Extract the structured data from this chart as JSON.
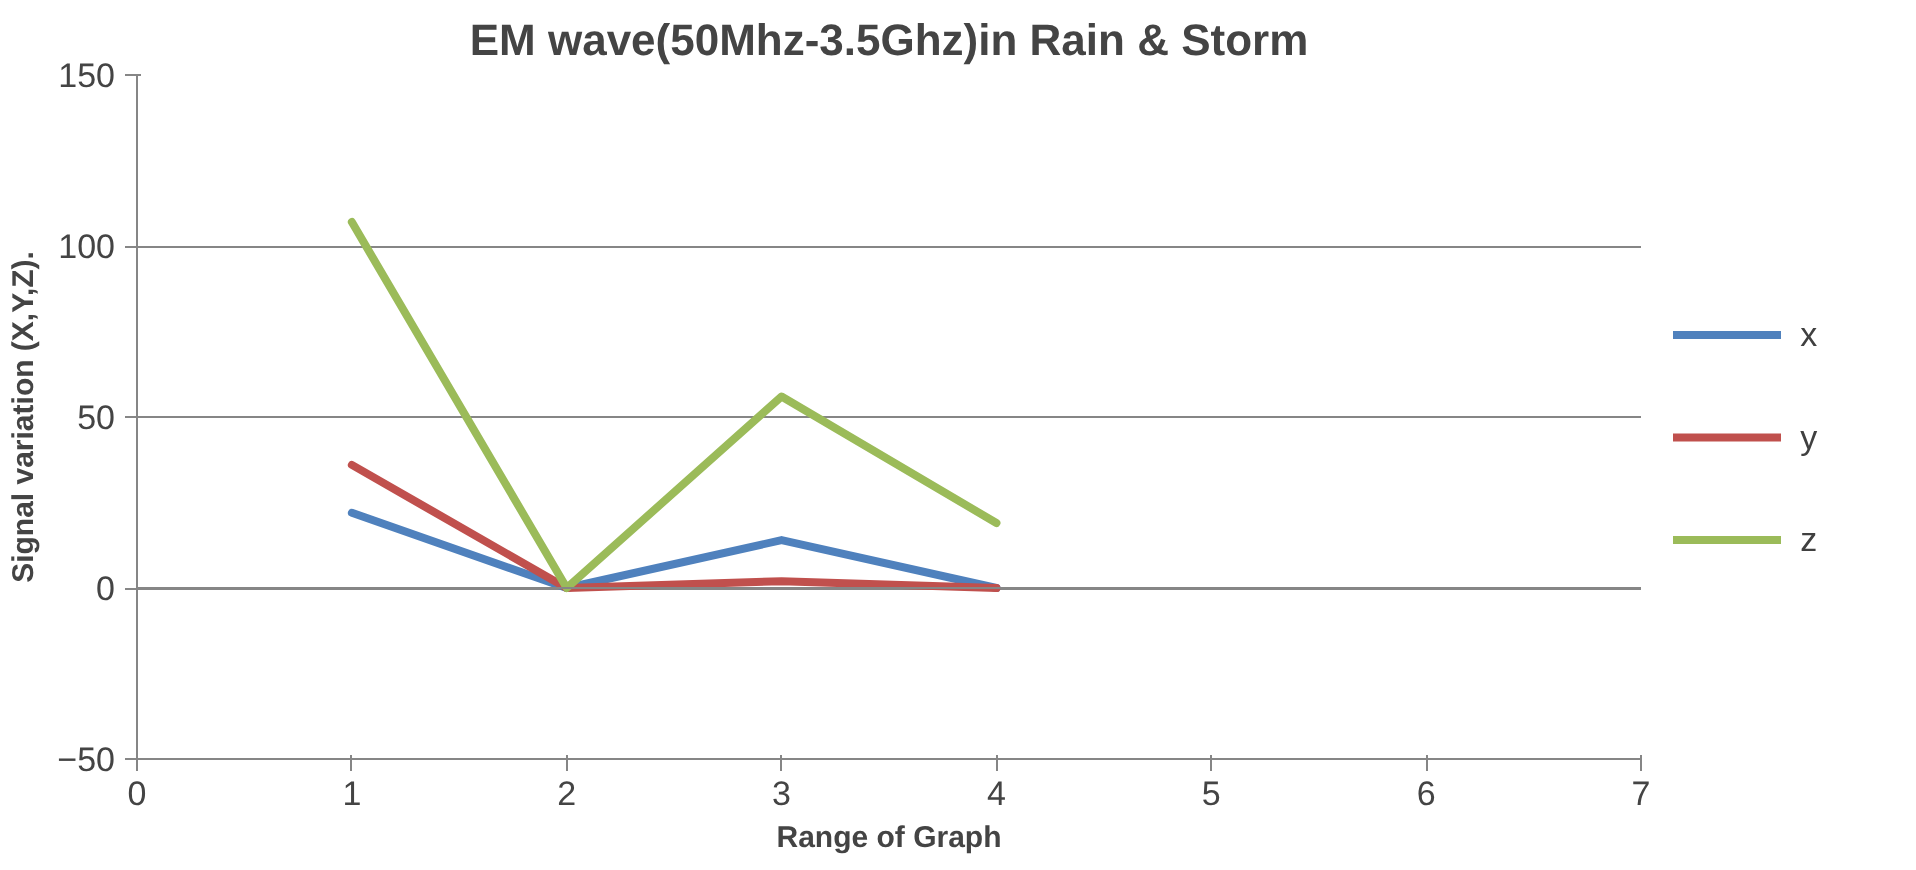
{
  "chart_data": {
    "type": "line",
    "title": "EM wave(50Mhz-3.5Ghz)in Rain & Storm",
    "xlabel": "Range of Graph",
    "ylabel": "Signal variation (X,Y,Z).",
    "x": [
      1,
      2,
      3,
      4
    ],
    "series": [
      {
        "name": "x",
        "color": "#4f81bd",
        "values": [
          22,
          0,
          14,
          0
        ]
      },
      {
        "name": "y",
        "color": "#c0504d",
        "values": [
          36,
          0,
          2,
          0
        ]
      },
      {
        "name": "z",
        "color": "#9bbb59",
        "values": [
          107,
          0,
          56,
          19
        ]
      }
    ],
    "xlim": [
      0,
      7
    ],
    "xticks": [
      0,
      1,
      2,
      3,
      4,
      5,
      6,
      7
    ],
    "ylim": [
      -50,
      150
    ],
    "yticks": [
      -50,
      0,
      50,
      100,
      150
    ],
    "grid": "y",
    "legend": "right",
    "marker": "none"
  }
}
